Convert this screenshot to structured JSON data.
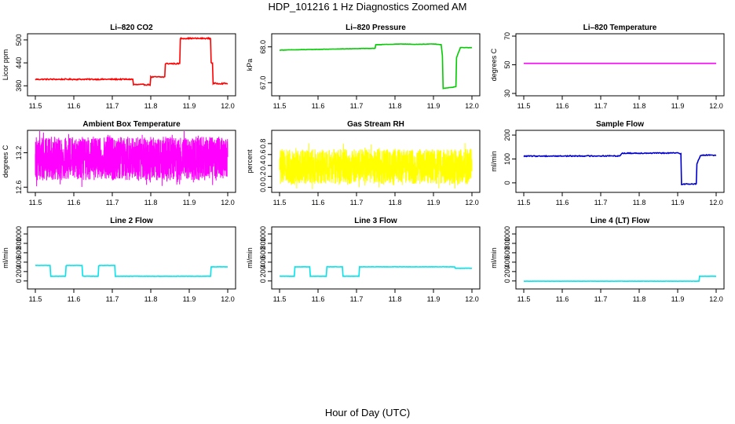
{
  "figure": {
    "title": "HDP_101216  1 Hz Diagnostics Zoomed AM",
    "xlabel": "Hour of Day (UTC)"
  },
  "chart_data": [
    {
      "id": "li820-co2",
      "type": "line",
      "title": "Li–820 CO2",
      "ylabel": "Licor ppm",
      "color": "#ff0000",
      "xlim": [
        11.5,
        12.0
      ],
      "xticks": [
        "11.5",
        "11.6",
        "11.7",
        "11.8",
        "11.9",
        "12.0"
      ],
      "ylim": [
        360,
        510
      ],
      "yticks": [
        "380",
        "440",
        "500"
      ],
      "noise": 1.5,
      "series": [
        {
          "x": [
            11.5,
            11.755,
            11.755,
            11.765,
            11.765,
            11.8,
            11.8,
            11.838,
            11.838,
            11.877,
            11.877,
            11.957,
            11.957,
            11.962,
            11.962,
            12.0
          ],
          "y": [
            397,
            397,
            383,
            383,
            383,
            383,
            403,
            403,
            438,
            438,
            504,
            504,
            440,
            440,
            386,
            386
          ]
        }
      ]
    },
    {
      "id": "li820-pressure",
      "type": "line",
      "title": "Li–820 Pressure",
      "ylabel": "kPa",
      "color": "#00cc00",
      "xlim": [
        11.5,
        12.0
      ],
      "xticks": [
        "11.5",
        "11.6",
        "11.7",
        "11.8",
        "11.9",
        "12.0"
      ],
      "ylim": [
        66.7,
        68.3
      ],
      "yticks": [
        "67.0",
        "68.0"
      ],
      "noise": 0.004,
      "series": [
        {
          "x": [
            11.5,
            11.6,
            11.7,
            11.75,
            11.75,
            11.82,
            11.85,
            11.9,
            11.92,
            11.925,
            11.925,
            11.955,
            11.96,
            11.96,
            11.97,
            12.0
          ],
          "y": [
            67.91,
            67.93,
            67.95,
            67.96,
            68.06,
            68.08,
            68.07,
            68.08,
            68.06,
            67.6,
            66.84,
            66.88,
            66.9,
            67.7,
            67.98,
            67.98
          ]
        }
      ]
    },
    {
      "id": "li820-temperature",
      "type": "line",
      "title": "Li–820 Temperature",
      "ylabel": "degrees C",
      "color": "#ff00ff",
      "xlim": [
        11.5,
        12.0
      ],
      "xticks": [
        "11.5",
        "11.6",
        "11.7",
        "11.8",
        "11.9",
        "12.0"
      ],
      "ylim": [
        30,
        70
      ],
      "yticks": [
        "30",
        "50",
        "70"
      ],
      "noise": 0,
      "series": [
        {
          "x": [
            11.5,
            12.0
          ],
          "y": [
            51,
            51
          ]
        }
      ]
    },
    {
      "id": "ambient-box-temperature",
      "type": "line",
      "title": "Ambient Box Temperature",
      "ylabel": "degrees C",
      "color": "#ff00ff",
      "xlim": [
        11.5,
        12.0
      ],
      "xticks": [
        "11.5",
        "11.6",
        "11.7",
        "11.8",
        "11.9",
        "12.0"
      ],
      "ylim": [
        12.55,
        13.55
      ],
      "yticks": [
        "12.6",
        "13.2"
      ],
      "noise": 0,
      "band": {
        "center": 13.1,
        "amplitude": 0.38,
        "points": 1800
      },
      "series": [
        {
          "x": [
            11.5,
            12.0
          ],
          "y": [
            13.1,
            13.1
          ]
        }
      ]
    },
    {
      "id": "gas-stream-rh",
      "type": "line",
      "title": "Gas Stream RH",
      "ylabel": "percent",
      "color": "#ffff00",
      "xlim": [
        11.5,
        12.0
      ],
      "xticks": [
        "11.5",
        "11.6",
        "11.7",
        "11.8",
        "11.9",
        "12.0"
      ],
      "ylim": [
        -0.05,
        1.0
      ],
      "yticks": [
        "0.0",
        "0.2",
        "0.4",
        "0.6",
        "0.8"
      ],
      "noise": 0,
      "band": {
        "center": 0.38,
        "amplitude": 0.32,
        "points": 1800
      },
      "series": [
        {
          "x": [
            11.5,
            12.0
          ],
          "y": [
            0.38,
            0.38
          ]
        }
      ]
    },
    {
      "id": "sample-flow",
      "type": "line",
      "title": "Sample Flow",
      "ylabel": "ml/min",
      "color": "#0000cc",
      "xlim": [
        11.5,
        12.0
      ],
      "xticks": [
        "11.5",
        "11.6",
        "11.7",
        "11.8",
        "11.9",
        "12.0"
      ],
      "ylim": [
        -30,
        210
      ],
      "yticks": [
        "0",
        "100",
        "200"
      ],
      "noise": 2,
      "series": [
        {
          "x": [
            11.5,
            11.75,
            11.755,
            11.9,
            11.91,
            11.91,
            11.95,
            11.95,
            11.96,
            11.96,
            12.0
          ],
          "y": [
            112,
            113,
            124,
            125,
            122,
            -5,
            -5,
            80,
            116,
            116,
            116
          ]
        }
      ]
    },
    {
      "id": "line-2-flow",
      "type": "line",
      "title": "Line 2 Flow",
      "ylabel": "ml/min",
      "color": "#00e5ee",
      "xlim": [
        11.5,
        12.0
      ],
      "xticks": [
        "11.5",
        "11.6",
        "11.7",
        "11.8",
        "11.9",
        "12.0"
      ],
      "ylim": [
        -120,
        1100
      ],
      "yticks": [
        "0",
        "200",
        "400",
        "600",
        "800",
        "1000"
      ],
      "noise": 3,
      "series": [
        {
          "x": [
            11.5,
            11.54,
            11.54,
            11.58,
            11.58,
            11.623,
            11.623,
            11.665,
            11.665,
            11.708,
            11.708,
            11.957,
            11.957,
            12.0
          ],
          "y": [
            330,
            330,
            100,
            100,
            330,
            330,
            100,
            100,
            330,
            330,
            100,
            100,
            300,
            300
          ]
        }
      ]
    },
    {
      "id": "line-3-flow",
      "type": "line",
      "title": "Line 3 Flow",
      "ylabel": "ml/min",
      "color": "#00e5ee",
      "xlim": [
        11.5,
        12.0
      ],
      "xticks": [
        "11.5",
        "11.6",
        "11.7",
        "11.8",
        "11.9",
        "12.0"
      ],
      "ylim": [
        -120,
        1100
      ],
      "yticks": [
        "0",
        "200",
        "400",
        "600",
        "800",
        "1000"
      ],
      "noise": 3,
      "series": [
        {
          "x": [
            11.5,
            11.54,
            11.54,
            11.58,
            11.58,
            11.623,
            11.623,
            11.665,
            11.665,
            11.708,
            11.708,
            11.957,
            11.957,
            12.0
          ],
          "y": [
            100,
            100,
            300,
            300,
            100,
            100,
            300,
            300,
            100,
            100,
            300,
            300,
            270,
            270
          ]
        }
      ]
    },
    {
      "id": "line-4-lt-flow",
      "type": "line",
      "title": "Line 4 (LT) Flow",
      "ylabel": "ml/min",
      "color": "#00e5ee",
      "xlim": [
        11.5,
        12.0
      ],
      "xticks": [
        "11.5",
        "11.6",
        "11.7",
        "11.8",
        "11.9",
        "12.0"
      ],
      "ylim": [
        -120,
        1100
      ],
      "yticks": [
        "0",
        "200",
        "400",
        "600",
        "800",
        "1000"
      ],
      "noise": 2,
      "series": [
        {
          "x": [
            11.5,
            11.957,
            11.957,
            12.0
          ],
          "y": [
            -5,
            -5,
            100,
            100
          ]
        }
      ]
    }
  ]
}
